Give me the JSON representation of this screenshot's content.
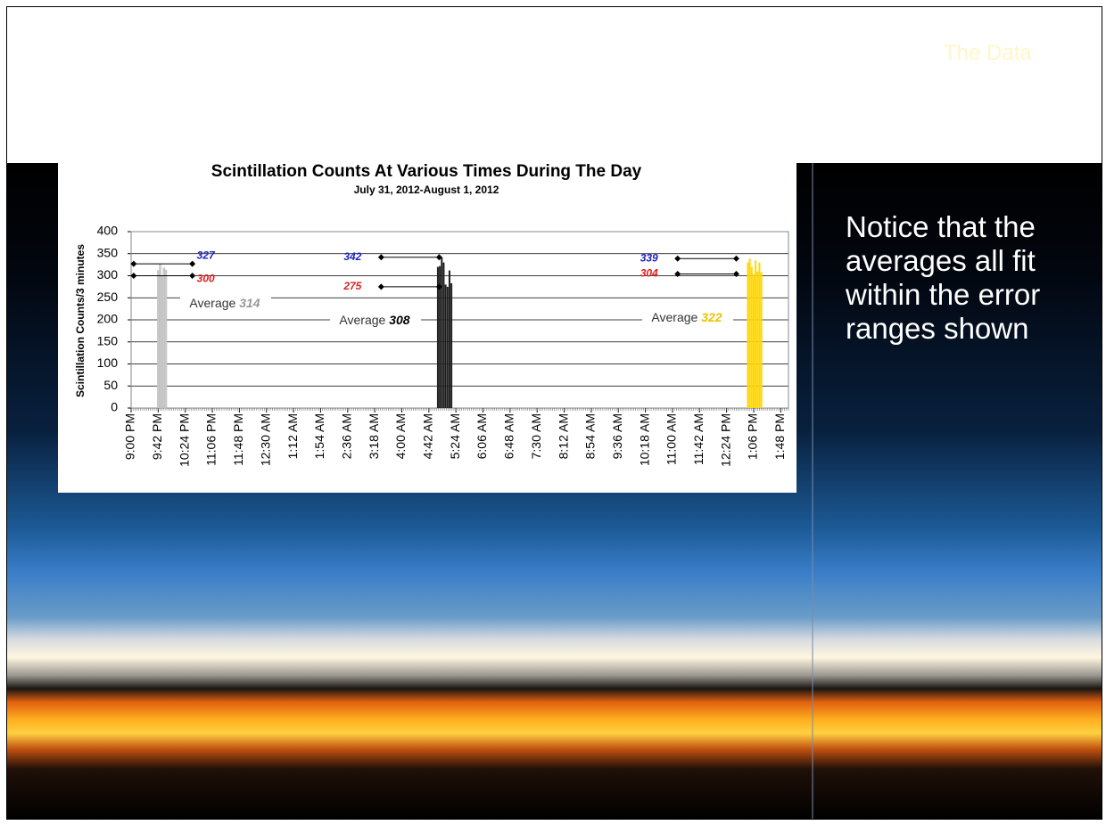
{
  "slide_title": "The Data",
  "note": "Notice that the averages all fit within the error ranges shown",
  "chart_data": {
    "type": "bar",
    "title": "Scintillation Counts At Various Times During The Day",
    "subtitle": "July 31, 2012-August 1, 2012",
    "ylabel": "Scintillation Counts/3 minutes",
    "ylim": [
      0,
      400
    ],
    "yticks": [
      0,
      50,
      100,
      150,
      200,
      250,
      300,
      350,
      400
    ],
    "grid": true,
    "xlim": [
      0,
      1020
    ],
    "xticks": [
      {
        "value": 0,
        "label": "9:00 PM"
      },
      {
        "value": 42,
        "label": "9:42 PM"
      },
      {
        "value": 84,
        "label": "10:24 PM"
      },
      {
        "value": 126,
        "label": "11:06 PM"
      },
      {
        "value": 168,
        "label": "11:48 PM"
      },
      {
        "value": 210,
        "label": "12:30 AM"
      },
      {
        "value": 252,
        "label": "1:12 AM"
      },
      {
        "value": 294,
        "label": "1:54 AM"
      },
      {
        "value": 336,
        "label": "2:36 AM"
      },
      {
        "value": 378,
        "label": "3:18 AM"
      },
      {
        "value": 420,
        "label": "4:00 AM"
      },
      {
        "value": 462,
        "label": "4:42 AM"
      },
      {
        "value": 504,
        "label": "5:24 AM"
      },
      {
        "value": 546,
        "label": "6:06 AM"
      },
      {
        "value": 588,
        "label": "6:48 AM"
      },
      {
        "value": 630,
        "label": "7:30 AM"
      },
      {
        "value": 672,
        "label": "8:12 AM"
      },
      {
        "value": 714,
        "label": "8:54 AM"
      },
      {
        "value": 756,
        "label": "9:36 AM"
      },
      {
        "value": 798,
        "label": "10:18 AM"
      },
      {
        "value": 840,
        "label": "11:00 AM"
      },
      {
        "value": 882,
        "label": "11:42 AM"
      },
      {
        "value": 924,
        "label": "12:24 PM"
      },
      {
        "value": 966,
        "label": "1:06 PM"
      },
      {
        "value": 1008,
        "label": "1:48 PM"
      }
    ],
    "series": [
      {
        "color": "#d0d0d0",
        "x": [
          42,
          45,
          48,
          51,
          54
        ],
        "values": [
          312,
          327,
          300,
          318,
          313
        ]
      },
      {
        "color": "#202020",
        "x": [
          476,
          479,
          482,
          485,
          488,
          491,
          494,
          497
        ],
        "values": [
          320,
          322,
          342,
          330,
          280,
          275,
          312,
          283
        ]
      },
      {
        "color": "#ffd700",
        "x": [
          957,
          960,
          963,
          966,
          969,
          972,
          975,
          978
        ],
        "values": [
          330,
          339,
          320,
          304,
          335,
          310,
          330,
          308
        ]
      }
    ],
    "error_ranges": [
      {
        "x": [
          4,
          95
        ],
        "high": 327,
        "low": 300,
        "high_color": "#2020c0",
        "low_color": "#e02020"
      },
      {
        "x": [
          388,
          478
        ],
        "high": 342,
        "low": 275,
        "high_color": "#2020c0",
        "low_color": "#e02020"
      },
      {
        "x": [
          848,
          939
        ],
        "high": 339,
        "low": 304,
        "high_color": "#2020c0",
        "low_color": "#e02020"
      }
    ],
    "averages": [
      {
        "text": "Average",
        "value": 314,
        "color": "#999999"
      },
      {
        "text": "Average",
        "value": 308,
        "color": "#000000"
      },
      {
        "text": "Average",
        "value": 322,
        "color": "#f0c000"
      }
    ]
  }
}
